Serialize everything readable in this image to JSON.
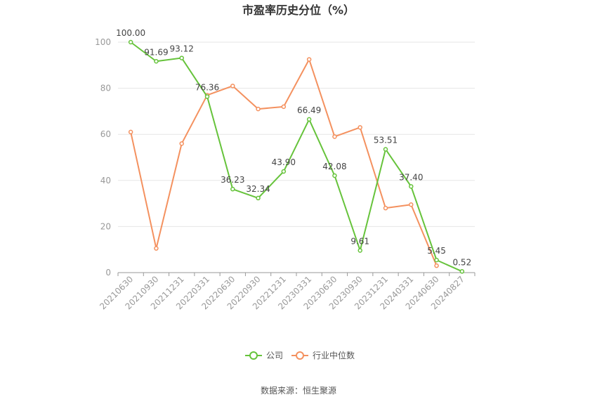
{
  "chart_data": {
    "type": "line",
    "title": "市盈率历史分位（%）",
    "xlabel": "",
    "ylabel": "",
    "ylim": [
      0,
      100
    ],
    "y_ticks": [
      0,
      20,
      40,
      60,
      80,
      100
    ],
    "grid": true,
    "legend_position": "bottom-center",
    "categories": [
      "20210630",
      "20210930",
      "20211231",
      "20220331",
      "20220630",
      "20220930",
      "20221231",
      "20230331",
      "20230630",
      "20230930",
      "20231231",
      "20240331",
      "20240630",
      "20240827"
    ],
    "series": [
      {
        "name": "公司",
        "color": "#66c33b",
        "values": [
          100.0,
          91.69,
          93.12,
          76.36,
          36.23,
          32.34,
          43.9,
          66.49,
          42.08,
          9.61,
          53.51,
          37.4,
          5.45,
          0.52
        ],
        "labels": [
          "100.00",
          "91.69",
          "93.12",
          "76.36",
          "36.23",
          "32.34",
          "43.90",
          "66.49",
          "42.08",
          "9.61",
          "53.51",
          "37.40",
          "5.45",
          "0.52"
        ]
      },
      {
        "name": "行业中位数",
        "color": "#f4915f",
        "values": [
          61,
          10.5,
          56,
          77,
          81,
          71,
          72,
          92.5,
          59,
          63,
          28,
          29.5,
          3,
          null
        ]
      }
    ]
  },
  "source_text": "数据来源：恒生聚源"
}
